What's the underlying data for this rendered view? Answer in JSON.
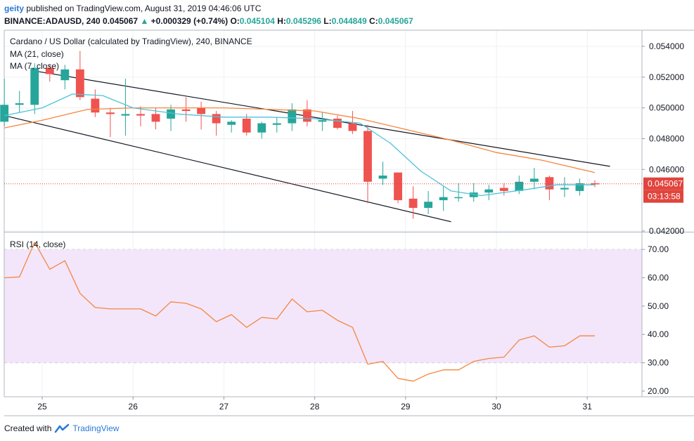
{
  "header": {
    "user": "geity",
    "published_text": "published on TradingView.com, August 31, 2019 04:46:06 UTC",
    "symbol_line": "BINANCE:ADAUSD, 240",
    "last_price": "0.045067",
    "change_arrow": "▲",
    "change_text": "+0.000329 (+0.74%)",
    "o_label": "O:",
    "o_value": "0.045104",
    "h_label": "H:",
    "h_value": "0.045296",
    "l_label": "L:",
    "l_value": "0.044849",
    "c_label": "C:",
    "c_value": "0.045067"
  },
  "legend": {
    "title": "Cardano / US Dollar (calculated by TradingView), 240, BINANCE",
    "ma21": "MA (21, close)",
    "ma7": "MA (7, close)",
    "rsi": "RSI (14, close)"
  },
  "footer": {
    "created_with": "Created with",
    "brand": "TradingView"
  },
  "colors": {
    "up": "#26a69a",
    "down": "#ef5350",
    "ma21": "#f5863e",
    "ma7": "#4fc3d8",
    "rsi_line": "#f5863e",
    "rsi_band": "#f3e6fb",
    "price_line": "#e0453d",
    "channel": "#131722"
  },
  "chart_data": [
    {
      "type": "candlestick",
      "title": "Cardano / US Dollar (calculated by TradingView), 240, BINANCE",
      "x_tick_labels": [
        "25",
        "26",
        "27",
        "28",
        "29",
        "30",
        "31"
      ],
      "y_tick_labels": [
        "0.054000",
        "0.052000",
        "0.050000",
        "0.048000",
        "0.046000",
        "0.042000"
      ],
      "y_ticks": [
        0.054,
        0.052,
        0.05,
        0.048,
        0.046,
        0.042
      ],
      "ylim": [
        0.04195,
        0.05505
      ],
      "bars_per_day": 6,
      "candles": [
        {
          "i": -2.5,
          "o": 0.0491,
          "h": 0.0519,
          "l": 0.0488,
          "c": 0.0502
        },
        {
          "i": -1.5,
          "o": 0.0502,
          "h": 0.0511,
          "l": 0.0497,
          "c": 0.0503
        },
        {
          "i": -0.5,
          "o": 0.0502,
          "h": 0.0529,
          "l": 0.0496,
          "c": 0.0526
        },
        {
          "i": 0.5,
          "o": 0.0526,
          "h": 0.0528,
          "l": 0.0517,
          "c": 0.0522
        },
        {
          "i": 1.5,
          "o": 0.0518,
          "h": 0.0528,
          "l": 0.0512,
          "c": 0.0525
        },
        {
          "i": 2.5,
          "o": 0.0525,
          "h": 0.0537,
          "l": 0.0505,
          "c": 0.0507
        },
        {
          "i": 3.5,
          "o": 0.0506,
          "h": 0.0512,
          "l": 0.0494,
          "c": 0.0497
        },
        {
          "i": 4.5,
          "o": 0.0497,
          "h": 0.05,
          "l": 0.0481,
          "c": 0.0496
        },
        {
          "i": 5.5,
          "o": 0.0495,
          "h": 0.0519,
          "l": 0.0482,
          "c": 0.0496
        },
        {
          "i": 6.5,
          "o": 0.0496,
          "h": 0.0501,
          "l": 0.0488,
          "c": 0.0495
        },
        {
          "i": 7.5,
          "o": 0.0496,
          "h": 0.05,
          "l": 0.0486,
          "c": 0.0491
        },
        {
          "i": 8.5,
          "o": 0.0493,
          "h": 0.0502,
          "l": 0.0485,
          "c": 0.0499
        },
        {
          "i": 9.5,
          "o": 0.0499,
          "h": 0.0507,
          "l": 0.0491,
          "c": 0.0498
        },
        {
          "i": 10.5,
          "o": 0.05,
          "h": 0.0504,
          "l": 0.0486,
          "c": 0.0496
        },
        {
          "i": 11.5,
          "o": 0.0496,
          "h": 0.0498,
          "l": 0.0482,
          "c": 0.049
        },
        {
          "i": 12.5,
          "o": 0.0489,
          "h": 0.0492,
          "l": 0.0484,
          "c": 0.0491
        },
        {
          "i": 13.5,
          "o": 0.0493,
          "h": 0.0496,
          "l": 0.0482,
          "c": 0.0484
        },
        {
          "i": 14.5,
          "o": 0.0484,
          "h": 0.0491,
          "l": 0.048,
          "c": 0.049
        },
        {
          "i": 15.5,
          "o": 0.0489,
          "h": 0.0494,
          "l": 0.0484,
          "c": 0.049
        },
        {
          "i": 16.5,
          "o": 0.049,
          "h": 0.0503,
          "l": 0.0485,
          "c": 0.0499
        },
        {
          "i": 17.5,
          "o": 0.0499,
          "h": 0.0505,
          "l": 0.0488,
          "c": 0.0491
        },
        {
          "i": 18.5,
          "o": 0.0491,
          "h": 0.0497,
          "l": 0.0485,
          "c": 0.0492
        },
        {
          "i": 19.5,
          "o": 0.0493,
          "h": 0.0495,
          "l": 0.0486,
          "c": 0.0487
        },
        {
          "i": 20.5,
          "o": 0.049,
          "h": 0.0498,
          "l": 0.0483,
          "c": 0.0485
        },
        {
          "i": 21.5,
          "o": 0.0485,
          "h": 0.0489,
          "l": 0.0438,
          "c": 0.0452
        },
        {
          "i": 22.5,
          "o": 0.0454,
          "h": 0.0465,
          "l": 0.045,
          "c": 0.0456
        },
        {
          "i": 23.5,
          "o": 0.0458,
          "h": 0.0458,
          "l": 0.0438,
          "c": 0.044
        },
        {
          "i": 24.5,
          "o": 0.0441,
          "h": 0.0449,
          "l": 0.0428,
          "c": 0.0435
        },
        {
          "i": 25.5,
          "o": 0.0435,
          "h": 0.0446,
          "l": 0.0431,
          "c": 0.0439
        },
        {
          "i": 26.5,
          "o": 0.044,
          "h": 0.0449,
          "l": 0.0433,
          "c": 0.0442
        },
        {
          "i": 27.5,
          "o": 0.0442,
          "h": 0.0451,
          "l": 0.0439,
          "c": 0.0442
        },
        {
          "i": 28.5,
          "o": 0.0442,
          "h": 0.0451,
          "l": 0.0439,
          "c": 0.0445
        },
        {
          "i": 29.5,
          "o": 0.0445,
          "h": 0.045,
          "l": 0.044,
          "c": 0.0447
        },
        {
          "i": 30.5,
          "o": 0.0448,
          "h": 0.0451,
          "l": 0.0443,
          "c": 0.0446
        },
        {
          "i": 31.5,
          "o": 0.0446,
          "h": 0.0456,
          "l": 0.0444,
          "c": 0.0452
        },
        {
          "i": 32.5,
          "o": 0.0452,
          "h": 0.0461,
          "l": 0.0447,
          "c": 0.0454
        },
        {
          "i": 33.5,
          "o": 0.0455,
          "h": 0.0456,
          "l": 0.044,
          "c": 0.0447
        },
        {
          "i": 34.5,
          "o": 0.0447,
          "h": 0.0455,
          "l": 0.0442,
          "c": 0.0448
        },
        {
          "i": 35.5,
          "o": 0.0446,
          "h": 0.0454,
          "l": 0.0443,
          "c": 0.0451
        },
        {
          "i": 36.5,
          "o": 0.0451,
          "h": 0.0453,
          "l": 0.04485,
          "c": 0.04507
        }
      ],
      "ma21": [
        [
          -2.5,
          0.0487
        ],
        [
          0,
          0.0492
        ],
        [
          3,
          0.0499
        ],
        [
          6,
          0.05
        ],
        [
          9,
          0.05
        ],
        [
          12,
          0.05
        ],
        [
          15,
          0.0499
        ],
        [
          18,
          0.0498
        ],
        [
          21,
          0.0493
        ],
        [
          24,
          0.0486
        ],
        [
          27,
          0.0479
        ],
        [
          30,
          0.0471
        ],
        [
          33,
          0.0466
        ],
        [
          36.5,
          0.0458
        ]
      ],
      "ma7": [
        [
          -2.5,
          0.0495
        ],
        [
          0,
          0.05
        ],
        [
          2,
          0.0509
        ],
        [
          4,
          0.0508
        ],
        [
          6,
          0.05
        ],
        [
          9,
          0.0496
        ],
        [
          12,
          0.0494
        ],
        [
          15,
          0.0494
        ],
        [
          18,
          0.0493
        ],
        [
          21,
          0.049
        ],
        [
          23,
          0.0477
        ],
        [
          25,
          0.0459
        ],
        [
          27,
          0.0446
        ],
        [
          29,
          0.0443
        ],
        [
          32,
          0.0447
        ],
        [
          34,
          0.045
        ],
        [
          36.5,
          0.045
        ]
      ],
      "channel_upper": [
        [
          -0.5,
          0.0524
        ],
        [
          37.5,
          0.0462
        ]
      ],
      "channel_lower": [
        [
          -2.5,
          0.0495
        ],
        [
          27,
          0.0426
        ]
      ],
      "last_price_label": "0.045067",
      "countdown_label": "03:13:58",
      "last_price": 0.045067
    },
    {
      "type": "line",
      "title": "RSI (14, close)",
      "y_tick_labels": [
        "70.00",
        "60.00",
        "50.00",
        "40.00",
        "30.00",
        "20.00"
      ],
      "y_ticks": [
        70,
        60,
        50,
        40,
        30,
        20
      ],
      "ylim": [
        18,
        76
      ],
      "band": [
        30,
        70
      ],
      "x": [
        -2.5,
        -1.5,
        -0.5,
        0.5,
        1.5,
        2.5,
        3.5,
        4.5,
        5.5,
        6.5,
        7.5,
        8.5,
        9.5,
        10.5,
        11.5,
        12.5,
        13.5,
        14.5,
        15.5,
        16.5,
        17.5,
        18.5,
        19.5,
        20.5,
        21.5,
        22.5,
        23.5,
        24.5,
        25.5,
        26.5,
        27.5,
        28.5,
        29.5,
        30.5,
        31.5,
        32.5,
        33.5,
        34.5,
        35.5,
        36.5
      ],
      "values": [
        60,
        60.3,
        72.5,
        63,
        66,
        54.5,
        49.5,
        49,
        49,
        49,
        46.5,
        51.5,
        51,
        49,
        44.5,
        47,
        42.5,
        46,
        45.5,
        52.5,
        48,
        48.5,
        45,
        42.5,
        29.5,
        30.5,
        24.5,
        23.5,
        26,
        27.5,
        27.5,
        30.5,
        31.5,
        32,
        38,
        39.5,
        35.5,
        36,
        39.5,
        39.5
      ]
    }
  ]
}
